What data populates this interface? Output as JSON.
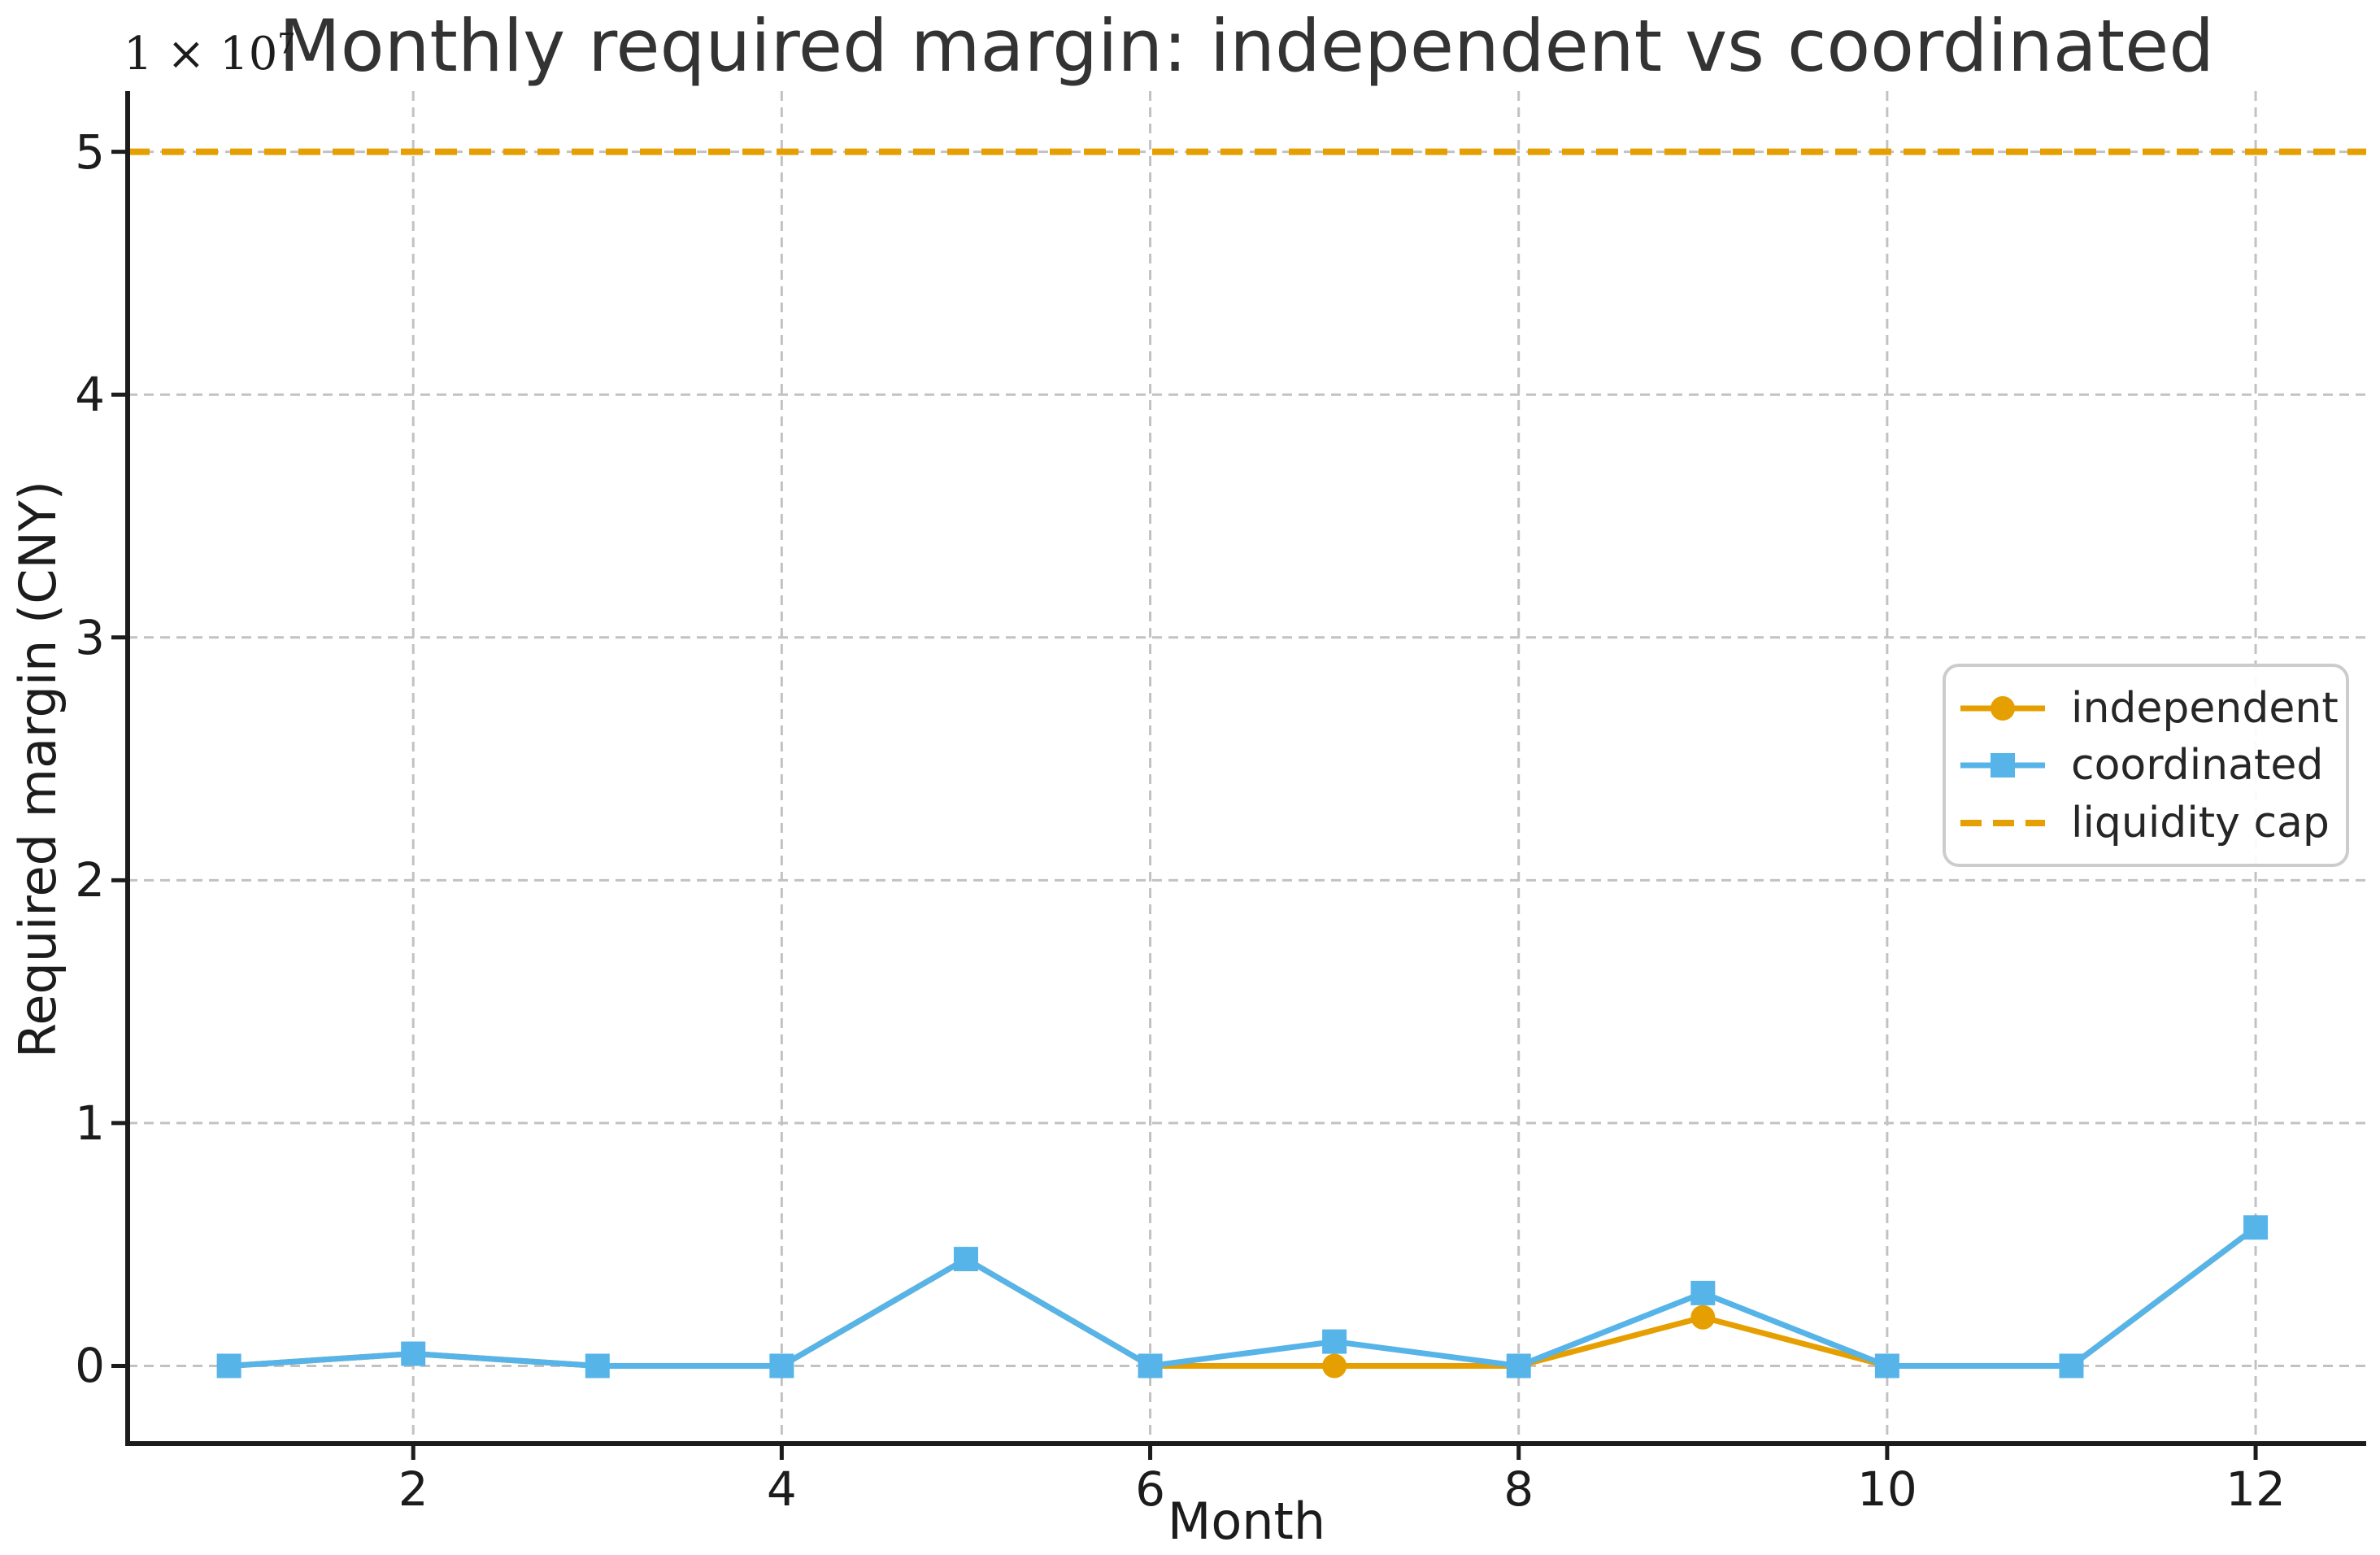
{
  "chart_data": {
    "type": "line",
    "title": "Monthly required margin: independent vs coordinated",
    "xlabel": "Month",
    "ylabel": "Required margin (CNY)",
    "y_offset": {
      "base": "1 × 10",
      "exp": "7"
    },
    "x": [
      1,
      2,
      3,
      4,
      5,
      6,
      7,
      8,
      9,
      10,
      11,
      12
    ],
    "series": [
      {
        "name": "independent",
        "color": "#E69F00",
        "marker": "circle",
        "linestyle": "solid",
        "values": [
          0,
          500000,
          0,
          0,
          4400000,
          0,
          0,
          0,
          2000000,
          0,
          0,
          5700000
        ]
      },
      {
        "name": "coordinated",
        "color": "#56B4E9",
        "marker": "square",
        "linestyle": "solid",
        "values": [
          0,
          500000,
          0,
          0,
          4400000,
          0,
          1000000,
          0,
          3000000,
          0,
          0,
          5700000
        ]
      },
      {
        "name": "liquidity cap",
        "color": "#E69F00",
        "marker": "none",
        "linestyle": "dashed",
        "type": "hline",
        "value": 50000000
      }
    ],
    "xticks": [
      2,
      4,
      6,
      8,
      10,
      12
    ],
    "yticks": [
      0,
      1,
      2,
      3,
      4,
      5
    ],
    "ytick_scale": 10000000,
    "xlim": [
      0.45,
      12.6
    ],
    "ylim": [
      -3200000,
      52500000
    ],
    "grid": true,
    "legend_position": "center-right",
    "colors": {
      "grid": "#c2c2c2",
      "spine": "#1c1c1c",
      "title": "#333333",
      "legend_border": "#cccccc",
      "background": "#ffffff"
    }
  }
}
